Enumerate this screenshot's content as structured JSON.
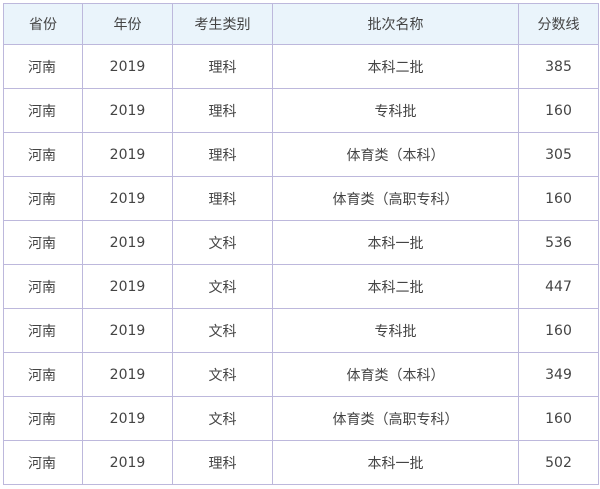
{
  "table": {
    "headers": [
      "省份",
      "年份",
      "考生类别",
      "批次名称",
      "分数线"
    ],
    "rows": [
      [
        "河南",
        "2019",
        "理科",
        "本科二批",
        "385"
      ],
      [
        "河南",
        "2019",
        "理科",
        "专科批",
        "160"
      ],
      [
        "河南",
        "2019",
        "理科",
        "体育类（本科）",
        "305"
      ],
      [
        "河南",
        "2019",
        "理科",
        "体育类（高职专科）",
        "160"
      ],
      [
        "河南",
        "2019",
        "文科",
        "本科一批",
        "536"
      ],
      [
        "河南",
        "2019",
        "文科",
        "本科二批",
        "447"
      ],
      [
        "河南",
        "2019",
        "文科",
        "专科批",
        "160"
      ],
      [
        "河南",
        "2019",
        "文科",
        "体育类（本科）",
        "349"
      ],
      [
        "河南",
        "2019",
        "文科",
        "体育类（高职专科）",
        "160"
      ],
      [
        "河南",
        "2019",
        "理科",
        "本科一批",
        "502"
      ]
    ]
  },
  "colors": {
    "header_bg": "#eaf4fb",
    "border": "#bdb8dc",
    "text": "#444444"
  }
}
